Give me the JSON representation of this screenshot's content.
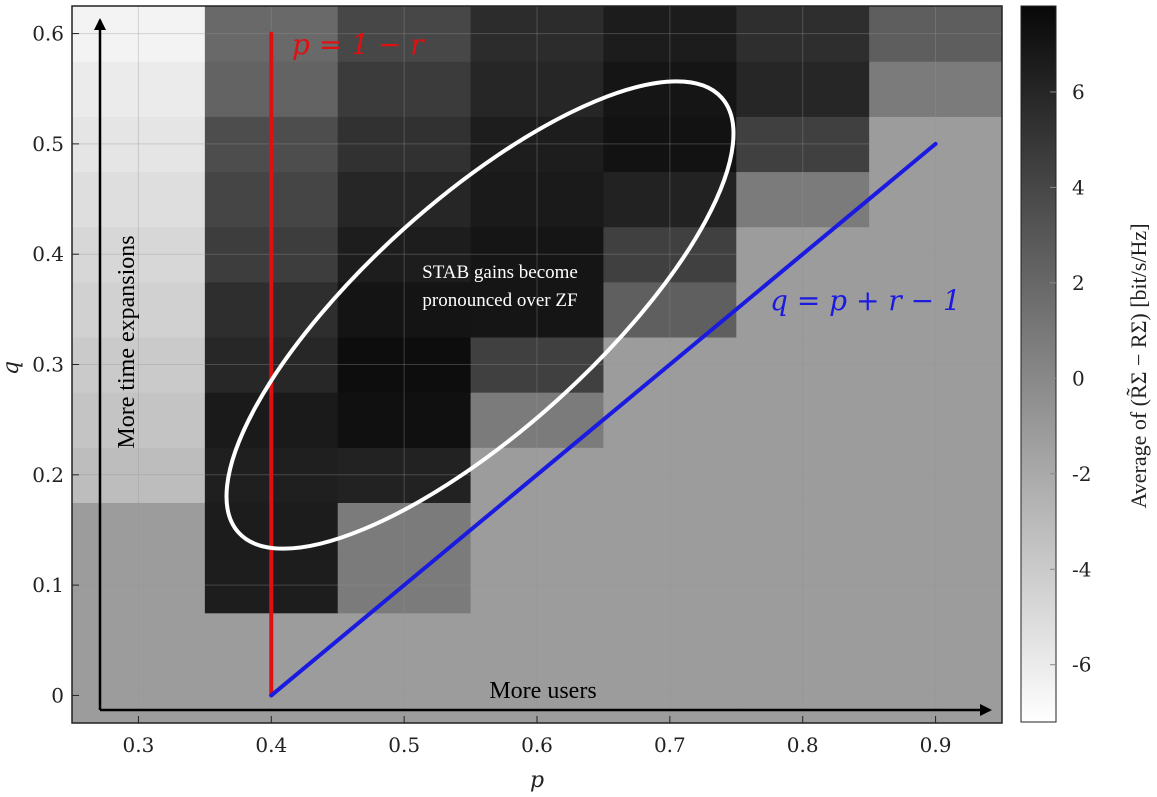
{
  "chart_data": {
    "type": "heatmap",
    "xlabel": "p",
    "ylabel": "q",
    "xlim": [
      0.25,
      0.95
    ],
    "ylim": [
      -0.025,
      0.625
    ],
    "x_ticks": [
      "0.3",
      "0.4",
      "0.5",
      "0.6",
      "0.7",
      "0.8",
      "0.9"
    ],
    "y_ticks": [
      "0",
      "0.1",
      "0.2",
      "0.3",
      "0.4",
      "0.5",
      "0.6"
    ],
    "colorbar": {
      "label": "Average  of (R̃Σ − RΣ) [bit/s/Hz]",
      "ticks": [
        "6",
        "4",
        "2",
        "0",
        "-2",
        "-4",
        "-6"
      ],
      "range": [
        -7.2,
        7.8
      ],
      "cmap": "gray_reversed"
    },
    "p_columns": [
      0.3,
      0.4,
      0.5,
      0.6,
      0.7,
      0.8,
      0.9
    ],
    "q_rows": [
      0.0,
      0.05,
      0.1,
      0.15,
      0.2,
      0.25,
      0.3,
      0.35,
      0.4,
      0.45,
      0.5,
      0.55,
      0.6
    ],
    "grid_values": [
      [
        -1.2,
        -1.2,
        -1.2,
        -1.2,
        -1.2,
        -1.2,
        -1.2
      ],
      [
        -1.2,
        -1.2,
        -1.2,
        -1.2,
        -1.2,
        -1.2,
        -1.2
      ],
      [
        -1.2,
        6.5,
        0.8,
        -1.2,
        -1.2,
        -1.2,
        -1.2
      ],
      [
        -1.2,
        6.6,
        0.8,
        -1.2,
        -1.2,
        -1.2,
        -1.2
      ],
      [
        -3.2,
        6.4,
        6.2,
        -1.2,
        -1.2,
        -1.2,
        -1.2
      ],
      [
        -3.6,
        6.7,
        7.3,
        0.8,
        -1.2,
        -1.2,
        -1.2
      ],
      [
        -4.0,
        5.9,
        7.5,
        4.4,
        -1.2,
        -1.2,
        -1.2
      ],
      [
        -4.4,
        5.5,
        7.1,
        7.0,
        2.5,
        -1.2,
        -1.2
      ],
      [
        -4.8,
        4.6,
        6.5,
        7.0,
        4.4,
        -1.2,
        -1.2
      ],
      [
        -5.2,
        4.1,
        6.0,
        6.7,
        6.2,
        0.8,
        -1.2
      ],
      [
        -5.6,
        3.6,
        5.3,
        6.5,
        7.2,
        4.4,
        -1.2
      ],
      [
        -6.0,
        2.3,
        4.7,
        6.0,
        7.0,
        6.0,
        0.8
      ],
      [
        -6.5,
        1.9,
        4.0,
        5.6,
        6.6,
        5.5,
        2.6
      ]
    ],
    "lines": [
      {
        "label": "p = 1 − r",
        "color": "#e01010",
        "x": [
          0.4,
          0.4
        ],
        "y": [
          0.0,
          0.6
        ]
      },
      {
        "label": "q = p + r − 1",
        "color": "#1a1ae0",
        "x": [
          0.4,
          0.9
        ],
        "y": [
          0.0,
          0.5
        ]
      }
    ],
    "annotations": {
      "ellipse_text_line1": "STAB gains become",
      "ellipse_text_line2": "pronounced over ZF",
      "x_arrow_label": "More users",
      "y_arrow_label": "More time expansions"
    }
  }
}
